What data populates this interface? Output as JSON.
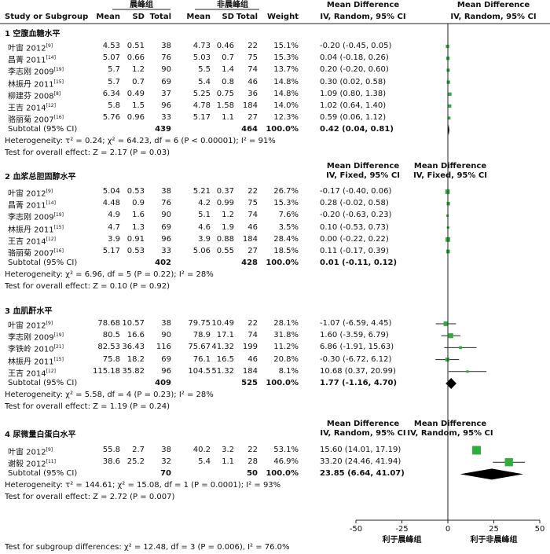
{
  "header": {
    "group1": "晨峰组",
    "group2": "非晨峰组",
    "study": "Study or Subgroup",
    "mean1": "Mean",
    "sd1": "SD",
    "total1": "Total",
    "mean2": "Mean",
    "sd2": "SD",
    "total2": "Total",
    "weight": "Weight",
    "md1": "Mean Difference",
    "md2": "IV, Random, 95% CI",
    "md3": "Mean Difference",
    "md4": "IV, Random, 95% CI"
  },
  "subgroups": [
    {
      "title": "1 空腹血糖水平",
      "method_header": null,
      "rows": [
        {
          "study": "叶宙 2012",
          "ref": "[9]",
          "m1": "4.53",
          "sd1": "0.51",
          "n1": "38",
          "m2": "4.73",
          "sd2": "0.46",
          "n2": "22",
          "w": "15.1%",
          "ci": "-0.20 (-0.45, 0.05)"
        },
        {
          "study": "昌菁 2011",
          "ref": "[14]",
          "m1": "5.07",
          "sd1": "0.66",
          "n1": "76",
          "m2": "5.03",
          "sd2": "0.7",
          "n2": "75",
          "w": "15.3%",
          "ci": "0.04 (-0.18, 0.26)"
        },
        {
          "study": "李志刚 2009",
          "ref": "[19]",
          "m1": "5.7",
          "sd1": "1.2",
          "n1": "90",
          "m2": "5.5",
          "sd2": "1.4",
          "n2": "74",
          "w": "13.7%",
          "ci": "0.20 (-0.20, 0.60)"
        },
        {
          "study": "林振丹 2011",
          "ref": "[15]",
          "m1": "5.7",
          "sd1": "0.7",
          "n1": "69",
          "m2": "5.4",
          "sd2": "0.8",
          "n2": "46",
          "w": "14.8%",
          "ci": "0.30 (0.02, 0.58)"
        },
        {
          "study": "柳建芬 2008",
          "ref": "[8]",
          "m1": "6.34",
          "sd1": "0.49",
          "n1": "37",
          "m2": "5.25",
          "sd2": "0.75",
          "n2": "36",
          "w": "14.8%",
          "ci": "1.09 (0.80, 1.38)"
        },
        {
          "study": "王吉 2014",
          "ref": "[12]",
          "m1": "5.8",
          "sd1": "1.5",
          "n1": "96",
          "m2": "4.78",
          "sd2": "1.58",
          "n2": "184",
          "w": "14.0%",
          "ci": "1.02 (0.64, 1.40)"
        },
        {
          "study": "骆丽菊 2007",
          "ref": "[16]",
          "m1": "5.76",
          "sd1": "0.96",
          "n1": "33",
          "m2": "5.17",
          "sd2": "1.1",
          "n2": "27",
          "w": "12.3%",
          "ci": "0.59 (0.06, 1.12)"
        }
      ],
      "subtotal": {
        "label": "Subtotal (95% CI)",
        "n1": "439",
        "n2": "464",
        "w": "100.0%",
        "ci": "0.42 (0.04, 0.81)"
      },
      "heterogeneity": "Heterogeneity: τ² = 0.24; χ² = 64.23, df = 6 (P < 0.00001); I² = 91%",
      "overall": "Test for overall effect: Z = 2.17 (P = 0.03)"
    },
    {
      "title": "2 血浆总胆固醇水平",
      "method_header": {
        "line1": "Mean Difference",
        "line2": "IV, Fixed, 95% CI",
        "line3": "Mean Difference",
        "line4": "IV, Fixed, 95% CI"
      },
      "rows": [
        {
          "study": "叶宙 2012",
          "ref": "[9]",
          "m1": "5.04",
          "sd1": "0.53",
          "n1": "38",
          "m2": "5.21",
          "sd2": "0.37",
          "n2": "22",
          "w": "26.7%",
          "ci": "-0.17 (-0.40, 0.06)"
        },
        {
          "study": "昌菁 2011",
          "ref": "[14]",
          "m1": "4.48",
          "sd1": "0.9",
          "n1": "76",
          "m2": "4.2",
          "sd2": "0.99",
          "n2": "75",
          "w": "15.3%",
          "ci": "0.28 (-0.02, 0.58)"
        },
        {
          "study": "李志刚 2009",
          "ref": "[19]",
          "m1": "4.9",
          "sd1": "1.6",
          "n1": "90",
          "m2": "5.1",
          "sd2": "1.2",
          "n2": "74",
          "w": "7.6%",
          "ci": "-0.20 (-0.63, 0.23)"
        },
        {
          "study": "林振丹 2011",
          "ref": "[15]",
          "m1": "4.7",
          "sd1": "1.3",
          "n1": "69",
          "m2": "4.6",
          "sd2": "1.9",
          "n2": "46",
          "w": "3.5%",
          "ci": "0.10 (-0.53, 0.73)"
        },
        {
          "study": "王吉 2014",
          "ref": "[12]",
          "m1": "3.9",
          "sd1": "0.91",
          "n1": "96",
          "m2": "3.9",
          "sd2": "0.88",
          "n2": "184",
          "w": "28.4%",
          "ci": "0.00 (-0.22, 0.22)"
        },
        {
          "study": "骆丽菊 2007",
          "ref": "[16]",
          "m1": "5.17",
          "sd1": "0.53",
          "n1": "33",
          "m2": "5.06",
          "sd2": "0.55",
          "n2": "27",
          "w": "18.5%",
          "ci": "0.11 (-0.17, 0.39)"
        }
      ],
      "subtotal": {
        "label": "Subtotal (95% CI)",
        "n1": "402",
        "n2": "428",
        "w": "100.0%",
        "ci": "0.01 (-0.11, 0.12)"
      },
      "heterogeneity": "Heterogeneity: χ² = 6.96, df = 5 (P = 0.22); I² = 28%",
      "overall": "Test for overall effect: Z = 0.10 (P = 0.92)"
    },
    {
      "title": "3 血肌酐水平",
      "method_header": null,
      "rows": [
        {
          "study": "叶宙 2012",
          "ref": "[9]",
          "m1": "78.68",
          "sd1": "10.57",
          "n1": "38",
          "m2": "79.75",
          "sd2": "10.49",
          "n2": "22",
          "w": "28.1%",
          "ci": "-1.07 (-6.59, 4.45)"
        },
        {
          "study": "李志刚 2009",
          "ref": "[19]",
          "m1": "80.5",
          "sd1": "16.6",
          "n1": "90",
          "m2": "78.9",
          "sd2": "17.1",
          "n2": "74",
          "w": "31.8%",
          "ci": "1.60 (-3.59, 6.79)"
        },
        {
          "study": "李铁岭 2010",
          "ref": "[21]",
          "m1": "82.53",
          "sd1": "36.43",
          "n1": "116",
          "m2": "75.67",
          "sd2": "41.32",
          "n2": "199",
          "w": "11.2%",
          "ci": "6.86 (-1.91, 15.63)"
        },
        {
          "study": "林振丹 2011",
          "ref": "[15]",
          "m1": "75.8",
          "sd1": "18.2",
          "n1": "69",
          "m2": "76.1",
          "sd2": "16.5",
          "n2": "46",
          "w": "20.8%",
          "ci": "-0.30 (-6.72, 6.12)"
        },
        {
          "study": "王吉 2014",
          "ref": "[12]",
          "m1": "115.18",
          "sd1": "35.82",
          "n1": "96",
          "m2": "104.5",
          "sd2": "51.32",
          "n2": "184",
          "w": "8.1%",
          "ci": "10.68 (0.37, 20.99)"
        }
      ],
      "subtotal": {
        "label": "Subtotal (95% CI)",
        "n1": "409",
        "n2": "525",
        "w": "100.0%",
        "ci": "1.77 (-1.16, 4.70)"
      },
      "heterogeneity": "Heterogeneity: χ² = 5.58, df = 4 (P = 0.23); I² = 28%",
      "overall": "Test for overall effect: Z = 1.19 (P = 0.24)"
    },
    {
      "title": "4 尿微量白蛋白水平",
      "method_header": {
        "line1": "Mean Difference",
        "line2": "IV, Random, 95% CI",
        "line3": "Mean Difference",
        "line4": "IV, Random, 95% CI"
      },
      "rows": [
        {
          "study": "叶宙 2012",
          "ref": "[9]",
          "m1": "55.8",
          "sd1": "2.7",
          "n1": "38",
          "m2": "40.2",
          "sd2": "3.2",
          "n2": "22",
          "w": "53.1%",
          "ci": "15.60 (14.01, 17.19)"
        },
        {
          "study": "谢毅 2012",
          "ref": "[11]",
          "m1": "38.6",
          "sd1": "25.2",
          "n1": "32",
          "m2": "5.4",
          "sd2": "1.1",
          "n2": "28",
          "w": "46.9%",
          "ci": "33.20 (24.46, 41.94)"
        }
      ],
      "subtotal": {
        "label": "Subtotal (95% CI)",
        "n1": "70",
        "n2": "50",
        "w": "100.0%",
        "ci": "23.85 (6.64, 41.07)"
      },
      "heterogeneity": "Heterogeneity: τ² = 144.61; χ² = 15.08, df = 1 (P = 0.0001); I² = 93%",
      "overall": "Test for overall effect: Z = 2.72 (P = 0.007)"
    }
  ],
  "axis": {
    "ticks": [
      "-50",
      "-25",
      "0",
      "25",
      "50"
    ],
    "left_label": "利于晨峰组",
    "right_label": "利于非晨峰组"
  },
  "footer": "Test for subgroup differences: χ² = 12.48, df = 3 (P = 0.006), I² = 76.0%",
  "colors": {
    "marker": "#2fae3c",
    "diamond": "#000000",
    "line": "#222222"
  },
  "chart_data": {
    "type": "forest",
    "xlim": [
      -50,
      50
    ],
    "xticks": [
      -50,
      -25,
      0,
      25,
      50
    ],
    "xlabel_left": "利于晨峰组",
    "xlabel_right": "利于非晨峰组",
    "subgroups": [
      {
        "name": "1 空腹血糖水平",
        "studies": [
          {
            "study": "叶宙 2012",
            "md": -0.2,
            "lo": -0.45,
            "hi": 0.05,
            "weight": 15.1
          },
          {
            "study": "昌菁 2011",
            "md": 0.04,
            "lo": -0.18,
            "hi": 0.26,
            "weight": 15.3
          },
          {
            "study": "李志刚 2009",
            "md": 0.2,
            "lo": -0.2,
            "hi": 0.6,
            "weight": 13.7
          },
          {
            "study": "林振丹 2011",
            "md": 0.3,
            "lo": 0.02,
            "hi": 0.58,
            "weight": 14.8
          },
          {
            "study": "柳建芬 2008",
            "md": 1.09,
            "lo": 0.8,
            "hi": 1.38,
            "weight": 14.8
          },
          {
            "study": "王吉 2014",
            "md": 1.02,
            "lo": 0.64,
            "hi": 1.4,
            "weight": 14.0
          },
          {
            "study": "骆丽菊 2007",
            "md": 0.59,
            "lo": 0.06,
            "hi": 1.12,
            "weight": 12.3
          }
        ],
        "subtotal": {
          "md": 0.42,
          "lo": 0.04,
          "hi": 0.81
        }
      },
      {
        "name": "2 血浆总胆固醇水平",
        "studies": [
          {
            "study": "叶宙 2012",
            "md": -0.17,
            "lo": -0.4,
            "hi": 0.06,
            "weight": 26.7
          },
          {
            "study": "昌菁 2011",
            "md": 0.28,
            "lo": -0.02,
            "hi": 0.58,
            "weight": 15.3
          },
          {
            "study": "李志刚 2009",
            "md": -0.2,
            "lo": -0.63,
            "hi": 0.23,
            "weight": 7.6
          },
          {
            "study": "林振丹 2011",
            "md": 0.1,
            "lo": -0.53,
            "hi": 0.73,
            "weight": 3.5
          },
          {
            "study": "王吉 2014",
            "md": 0.0,
            "lo": -0.22,
            "hi": 0.22,
            "weight": 28.4
          },
          {
            "study": "骆丽菊 2007",
            "md": 0.11,
            "lo": -0.17,
            "hi": 0.39,
            "weight": 18.5
          }
        ],
        "subtotal": {
          "md": 0.01,
          "lo": -0.11,
          "hi": 0.12
        }
      },
      {
        "name": "3 血肌酐水平",
        "studies": [
          {
            "study": "叶宙 2012",
            "md": -1.07,
            "lo": -6.59,
            "hi": 4.45,
            "weight": 28.1
          },
          {
            "study": "李志刚 2009",
            "md": 1.6,
            "lo": -3.59,
            "hi": 6.79,
            "weight": 31.8
          },
          {
            "study": "李铁岭 2010",
            "md": 6.86,
            "lo": -1.91,
            "hi": 15.63,
            "weight": 11.2
          },
          {
            "study": "林振丹 2011",
            "md": -0.3,
            "lo": -6.72,
            "hi": 6.12,
            "weight": 20.8
          },
          {
            "study": "王吉 2014",
            "md": 10.68,
            "lo": 0.37,
            "hi": 20.99,
            "weight": 8.1
          }
        ],
        "subtotal": {
          "md": 1.77,
          "lo": -1.16,
          "hi": 4.7
        }
      },
      {
        "name": "4 尿微量白蛋白水平",
        "studies": [
          {
            "study": "叶宙 2012",
            "md": 15.6,
            "lo": 14.01,
            "hi": 17.19,
            "weight": 53.1
          },
          {
            "study": "谢毅 2012",
            "md": 33.2,
            "lo": 24.46,
            "hi": 41.94,
            "weight": 46.9
          }
        ],
        "subtotal": {
          "md": 23.85,
          "lo": 6.64,
          "hi": 41.07
        }
      }
    ]
  }
}
